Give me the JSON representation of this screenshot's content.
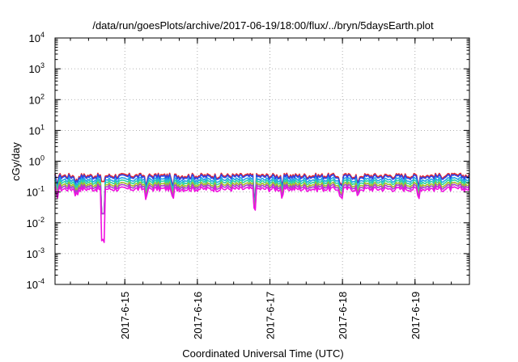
{
  "chart_data": {
    "type": "line",
    "title": "/data/run/goesPlots/archive/2017-06-19/18:00/flux/../bryn/5daysEarth.plot",
    "xlabel": "Coordinated Universal Time (UTC)",
    "ylabel": "cGy/day",
    "yscale": "log",
    "ylim": [
      0.0001,
      10000
    ],
    "xlim": [
      "2017-06-14 00:55",
      "2017-06-19 18:00"
    ],
    "y_ticks": [
      {
        "base": "10",
        "exp": "-4",
        "value": 0.0001
      },
      {
        "base": "10",
        "exp": "-3",
        "value": 0.001
      },
      {
        "base": "10",
        "exp": "-2",
        "value": 0.01
      },
      {
        "base": "10",
        "exp": "-1",
        "value": 0.1
      },
      {
        "base": "10",
        "exp": "0",
        "value": 1
      },
      {
        "base": "10",
        "exp": "1",
        "value": 10
      },
      {
        "base": "10",
        "exp": "2",
        "value": 100
      },
      {
        "base": "10",
        "exp": "3",
        "value": 1000
      },
      {
        "base": "10",
        "exp": "4",
        "value": 10000
      }
    ],
    "x_ticks": [
      {
        "label": "2017-6-15",
        "value": "2017-06-15 00:00"
      },
      {
        "label": "2017-6-16",
        "value": "2017-06-16 00:00"
      },
      {
        "label": "2017-6-17",
        "value": "2017-06-17 00:00"
      },
      {
        "label": "2017-6-18",
        "value": "2017-06-18 00:00"
      },
      {
        "label": "2017-6-19",
        "value": "2017-06-19 00:00"
      }
    ],
    "grid": true,
    "legend": "none",
    "series": [
      {
        "color": "#e8262a",
        "base": 0.34,
        "min_at_dip": 0.22
      },
      {
        "color": "#2a45e8",
        "base": 0.31,
        "min_at_dip": 0.02
      },
      {
        "color": "#1fa5e8",
        "base": 0.25,
        "min_at_dip": 0.02
      },
      {
        "color": "#2bd4a4",
        "base": 0.21,
        "min_at_dip": 0.02
      },
      {
        "color": "#a5bd2a",
        "base": 0.175,
        "min_at_dip": 0.02
      },
      {
        "color": "#a83fcf",
        "base": 0.15,
        "min_at_dip": 0.02
      },
      {
        "color": "#f012e0",
        "base": 0.125,
        "min_at_dip": 0.002
      }
    ],
    "dips": [
      {
        "time": "2017-06-14 01:30",
        "factor": 0.6
      },
      {
        "time": "2017-06-14 08:00",
        "factor": 0.7
      },
      {
        "time": "2017-06-14 16:45",
        "factor": 0.02
      },
      {
        "time": "2017-06-15 07:00",
        "factor": 0.55
      },
      {
        "time": "2017-06-15 16:00",
        "factor": 0.5
      },
      {
        "time": "2017-06-16 19:00",
        "factor": 0.25
      },
      {
        "time": "2017-06-17 04:00",
        "factor": 0.55
      },
      {
        "time": "2017-06-17 23:30",
        "factor": 0.55
      },
      {
        "time": "2017-06-18 05:00",
        "factor": 0.6
      },
      {
        "time": "2017-06-19 01:00",
        "factor": 0.6
      }
    ]
  }
}
